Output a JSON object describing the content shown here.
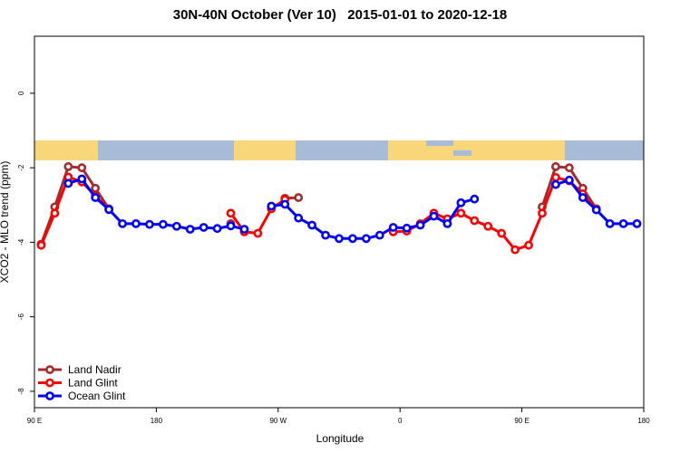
{
  "chart_data": {
    "type": "line",
    "title": "30N-40N October (Ver 10)   2015-01-01 to 2020-12-18",
    "x_label": "Longitude",
    "y_label": "XCO2 - MLO trend (ppm)",
    "x": [
      95,
      105,
      115,
      125,
      135,
      145,
      155,
      165,
      175,
      185,
      195,
      205,
      215,
      225,
      235,
      245,
      255,
      265,
      275,
      285,
      295,
      305,
      315,
      325,
      335,
      345,
      355,
      365,
      375,
      385,
      395,
      405,
      415,
      425,
      435,
      445,
      455,
      465,
      475,
      485,
      495,
      505,
      515,
      525,
      535
    ],
    "series": [
      {
        "name": "Land Nadir",
        "color": "#a52a2a",
        "values": [
          -4.05,
          -3.05,
          -1.97,
          -2.0,
          -2.55,
          -3.1,
          null,
          null,
          null,
          null,
          null,
          null,
          null,
          null,
          -3.5,
          null,
          null,
          null,
          -2.82,
          -2.8,
          null,
          null,
          null,
          null,
          null,
          null,
          null,
          null,
          null,
          null,
          null,
          null,
          null,
          null,
          null,
          null,
          null,
          -3.05,
          -1.97,
          -2.0,
          -2.55,
          -3.1,
          null,
          null,
          null
        ]
      },
      {
        "name": "Land Glint",
        "color": "#ff0000",
        "values": [
          -4.08,
          -3.22,
          -2.25,
          -2.38,
          -2.75,
          -3.12,
          null,
          null,
          null,
          null,
          null,
          null,
          null,
          null,
          -3.22,
          -3.72,
          -3.76,
          -3.1,
          -2.85,
          null,
          null,
          null,
          null,
          null,
          null,
          null,
          -3.72,
          -3.7,
          -3.5,
          -3.22,
          -3.37,
          -3.22,
          -3.42,
          -3.57,
          -3.76,
          -4.2,
          -4.08,
          -3.22,
          -2.26,
          -2.35,
          -2.7,
          -3.12,
          null,
          null,
          null
        ]
      },
      {
        "name": "Ocean Glint",
        "color": "#0000ff",
        "values": [
          null,
          null,
          -2.42,
          -2.3,
          -2.8,
          -3.12,
          -3.5,
          -3.5,
          -3.52,
          -3.52,
          -3.57,
          -3.65,
          -3.6,
          -3.63,
          -3.56,
          -3.65,
          null,
          -3.03,
          -2.98,
          -3.35,
          -3.54,
          -3.81,
          -3.9,
          -3.9,
          -3.9,
          -3.81,
          -3.6,
          -3.62,
          -3.54,
          -3.3,
          -3.5,
          -2.94,
          -2.84,
          null,
          null,
          null,
          null,
          null,
          -2.45,
          -2.33,
          -2.8,
          -3.13,
          -3.5,
          -3.5,
          -3.5
        ]
      }
    ],
    "xlim": [
      90,
      540
    ],
    "xticks": [
      {
        "value": 90,
        "label": "90 E"
      },
      180,
      {
        "value": 270,
        "label": "90 W"
      },
      {
        "value": 360,
        "label": "0"
      },
      {
        "value": 450,
        "label": "90 E"
      },
      {
        "value": 540,
        "label": "180"
      }
    ],
    "ylim": [
      -8.44,
      1.53
    ],
    "yticks": [
      -8,
      -6,
      -4,
      -2,
      0
    ],
    "legend": "bottom-left"
  }
}
